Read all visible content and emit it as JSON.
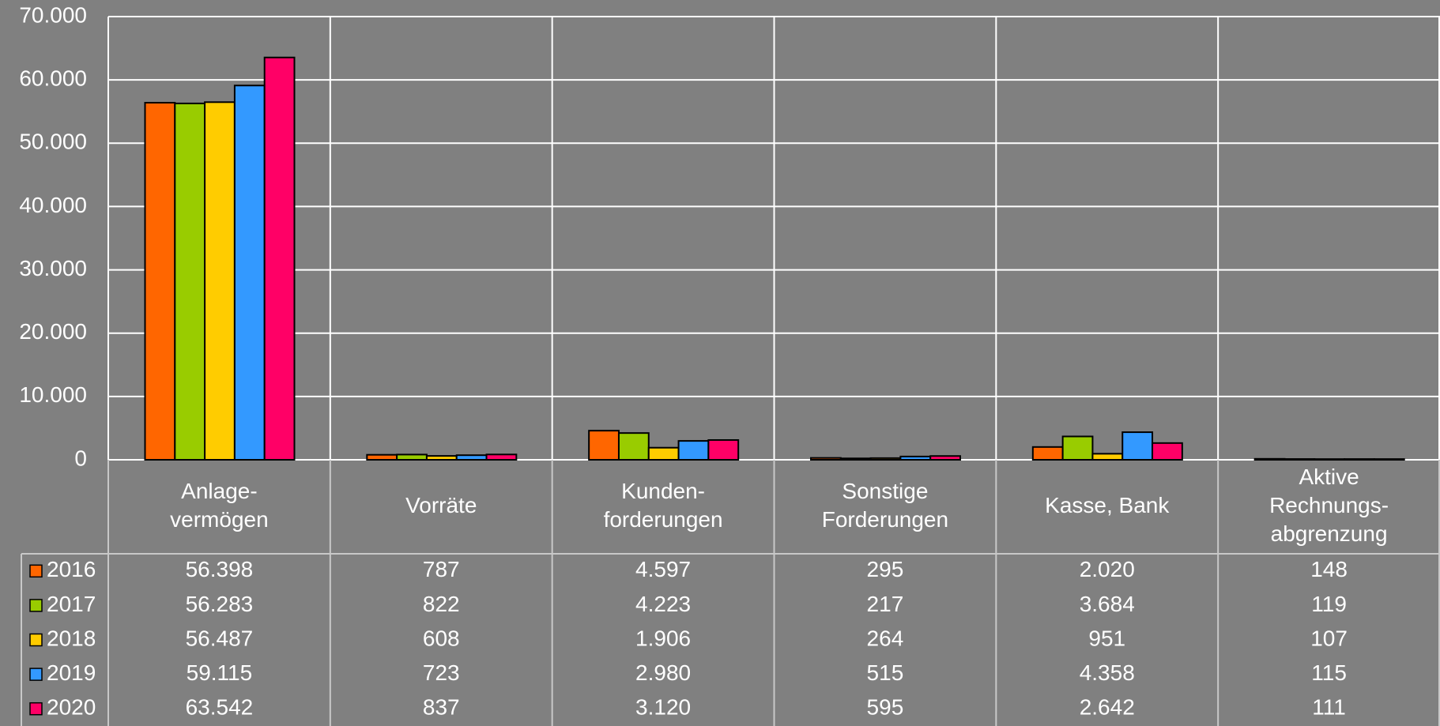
{
  "chart_data": {
    "type": "bar",
    "categories": [
      [
        "Anlage-",
        "vermögen"
      ],
      [
        "Vorräte"
      ],
      [
        "Kunden-",
        "forderungen"
      ],
      [
        "Sonstige",
        "Forderungen"
      ],
      [
        "Kasse, Bank"
      ],
      [
        "Aktive",
        "Rechnungs-",
        "abgrenzung"
      ]
    ],
    "series": [
      {
        "name": "2016",
        "color": "#ff6600",
        "values": [
          56398,
          787,
          4597,
          295,
          2020,
          148
        ],
        "value_labels": [
          "56.398",
          "787",
          "4.597",
          "295",
          "2.020",
          "148"
        ]
      },
      {
        "name": "2017",
        "color": "#99cc00",
        "values": [
          56283,
          822,
          4223,
          217,
          3684,
          119
        ],
        "value_labels": [
          "56.283",
          "822",
          "4.223",
          "217",
          "3.684",
          "119"
        ]
      },
      {
        "name": "2018",
        "color": "#ffcc00",
        "values": [
          56487,
          608,
          1906,
          264,
          951,
          107
        ],
        "value_labels": [
          "56.487",
          "608",
          "1.906",
          "264",
          "951",
          "107"
        ]
      },
      {
        "name": "2019",
        "color": "#3399ff",
        "values": [
          59115,
          723,
          2980,
          515,
          4358,
          115
        ],
        "value_labels": [
          "59.115",
          "723",
          "2.980",
          "515",
          "4.358",
          "115"
        ]
      },
      {
        "name": "2020",
        "color": "#ff0066",
        "values": [
          63542,
          837,
          3120,
          595,
          2642,
          111
        ],
        "value_labels": [
          "63.542",
          "837",
          "3.120",
          "595",
          "2.642",
          "111"
        ]
      }
    ],
    "ylim": [
      0,
      70000
    ],
    "yticks": [
      0,
      {
        "value": 10000,
        "label": "10.000"
      },
      {
        "value": 20000,
        "label": "20.000"
      },
      {
        "value": 30000,
        "label": "30.000"
      },
      {
        "value": 40000,
        "label": "40.000"
      },
      {
        "value": 50000,
        "label": "50.000"
      },
      {
        "value": 60000,
        "label": "60.000"
      },
      {
        "value": 70000,
        "label": "70.000"
      }
    ],
    "grid": true
  }
}
